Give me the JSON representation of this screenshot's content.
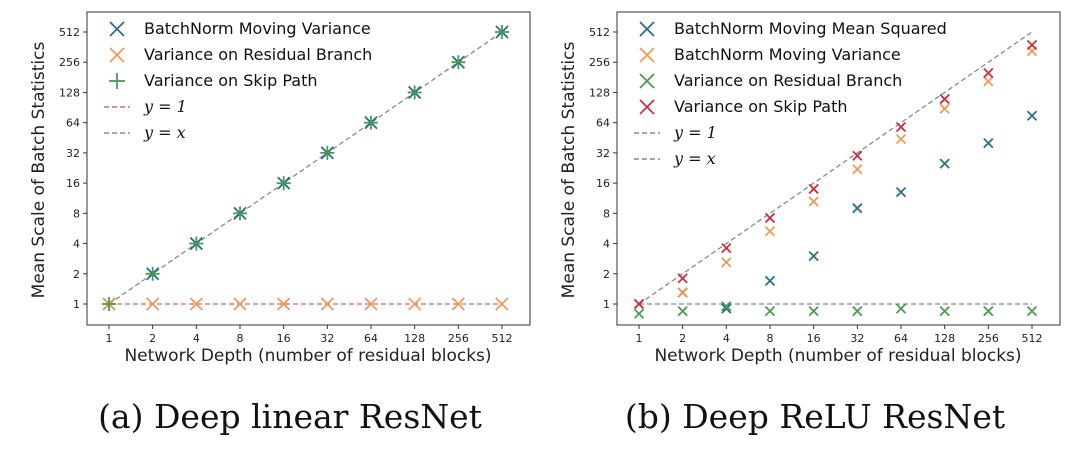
{
  "chart_data": [
    {
      "type": "scatter",
      "caption": "(a) Deep linear ResNet",
      "xlabel": "Network Depth (number of residual blocks)",
      "ylabel": "Mean Scale of Batch Statistics",
      "x_scale": "log2",
      "y_scale": "log2",
      "x": [
        1,
        2,
        4,
        8,
        16,
        32,
        64,
        128,
        256,
        512
      ],
      "xlim": [
        1,
        512
      ],
      "ylim": [
        1,
        512
      ],
      "x_ticks": [
        "1",
        "2",
        "4",
        "8",
        "16",
        "32",
        "64",
        "128",
        "256",
        "512"
      ],
      "y_ticks": [
        "1",
        "2",
        "4",
        "8",
        "16",
        "32",
        "64",
        "128",
        "256",
        "512"
      ],
      "legend_position": "top-left",
      "series": [
        {
          "name": "BatchNorm Moving Variance",
          "marker": "x",
          "color": "#2a6f83",
          "values": [
            1,
            2,
            4,
            8,
            16,
            32,
            64,
            128,
            256,
            512
          ]
        },
        {
          "name": "Variance on Residual Branch",
          "marker": "x",
          "color": "#ef9b55",
          "values": [
            1,
            1,
            1,
            1,
            1,
            1,
            1,
            1,
            1,
            1
          ]
        },
        {
          "name": "Variance on Skip Path",
          "marker": "+",
          "color": "#4a9a52",
          "values": [
            1,
            2,
            4,
            8,
            16,
            32,
            64,
            128,
            256,
            512
          ]
        }
      ],
      "reference_lines": [
        {
          "name": "y = 1",
          "color": "#c96a7a",
          "style": "dashed"
        },
        {
          "name": "y = x",
          "color": "#8a8a8a",
          "style": "dashed"
        }
      ]
    },
    {
      "type": "scatter",
      "caption": "(b) Deep ReLU ResNet",
      "xlabel": "Network Depth (number of residual blocks)",
      "ylabel": "Mean Scale of Batch Statistics",
      "x_scale": "log2",
      "y_scale": "log2",
      "x": [
        1,
        2,
        4,
        8,
        16,
        32,
        64,
        128,
        256,
        512
      ],
      "xlim": [
        1,
        512
      ],
      "ylim": [
        0.8,
        512
      ],
      "x_ticks": [
        "1",
        "2",
        "4",
        "8",
        "16",
        "32",
        "64",
        "128",
        "256",
        "512"
      ],
      "y_ticks": [
        "1",
        "2",
        "4",
        "8",
        "16",
        "32",
        "64",
        "128",
        "256",
        "512"
      ],
      "legend_position": "top-left",
      "series": [
        {
          "name": "BatchNorm Moving Mean Squared",
          "marker": "x",
          "color": "#2a6f83",
          "values": [
            1,
            1.3,
            0.9,
            1.7,
            3,
            9,
            13,
            25,
            40,
            75
          ]
        },
        {
          "name": "BatchNorm Moving Variance",
          "marker": "x",
          "color": "#ef9b55",
          "values": [
            1,
            1.3,
            2.6,
            5.3,
            10.5,
            22,
            44,
            88,
            165,
            330
          ]
        },
        {
          "name": "Variance on Residual Branch",
          "marker": "x",
          "color": "#4a9a52",
          "values": [
            0.8,
            0.85,
            0.95,
            0.85,
            0.85,
            0.85,
            0.9,
            0.85,
            0.85,
            0.85
          ]
        },
        {
          "name": "Variance on Skip Path",
          "marker": "x",
          "color": "#c93040",
          "values": [
            1,
            1.8,
            3.6,
            7.2,
            14,
            30,
            58,
            110,
            200,
            380
          ]
        }
      ],
      "reference_lines": [
        {
          "name": "y = 1",
          "color": "#8a8a8a",
          "style": "dashed"
        },
        {
          "name": "y = x",
          "color": "#8a8a8a",
          "style": "dashed"
        }
      ]
    }
  ]
}
